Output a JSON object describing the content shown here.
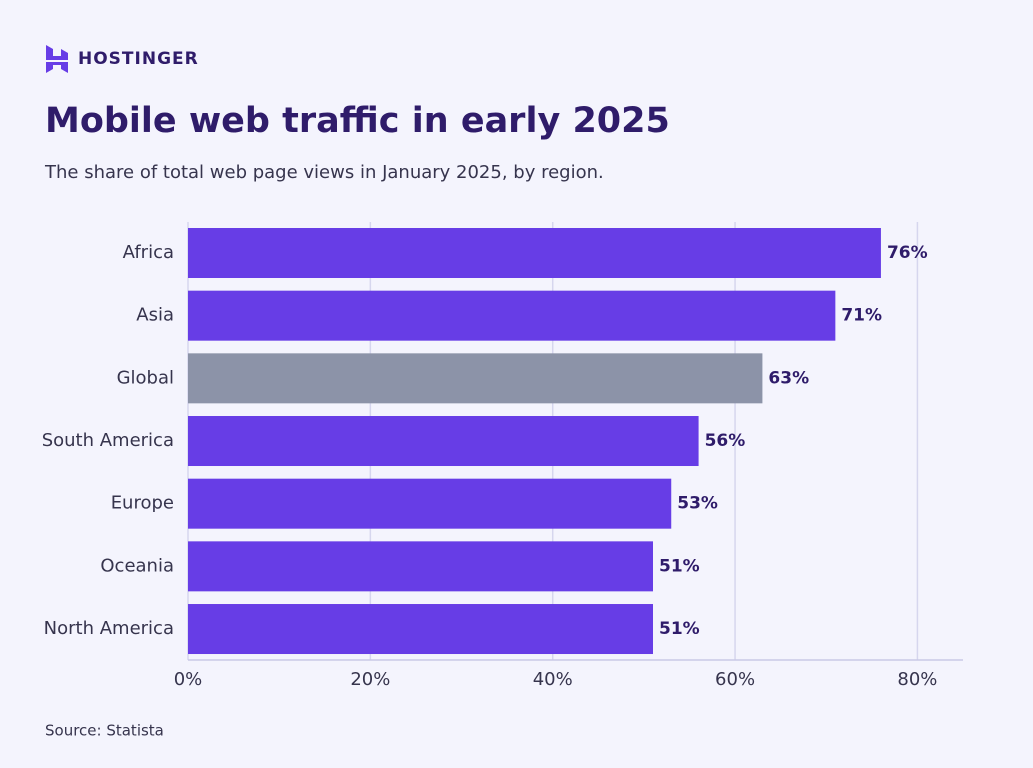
{
  "brand": "HOSTINGER",
  "chart_data": {
    "type": "hbar",
    "title": "Mobile web traffic in early 2025",
    "subtitle": "The share of total web page views in January 2025, by region.",
    "source": "Source: Statista",
    "categories": [
      "Africa",
      "Asia",
      "Global",
      "South America",
      "Europe",
      "Oceania",
      "North America"
    ],
    "values": [
      76,
      71,
      63,
      56,
      53,
      51,
      51
    ],
    "value_labels": [
      "76%",
      "71%",
      "63%",
      "56%",
      "53%",
      "51%",
      "51%"
    ],
    "colors": [
      "#673de6",
      "#673de6",
      "#8c93a8",
      "#673de6",
      "#673de6",
      "#673de6",
      "#673de6"
    ],
    "xlim": [
      0,
      85
    ],
    "xticks": [
      {
        "value": 0,
        "label": "0%"
      },
      {
        "value": 20,
        "label": "20%"
      },
      {
        "value": 40,
        "label": "40%"
      },
      {
        "value": 60,
        "label": "60%"
      },
      {
        "value": 80,
        "label": "80%"
      }
    ],
    "grid": true
  }
}
